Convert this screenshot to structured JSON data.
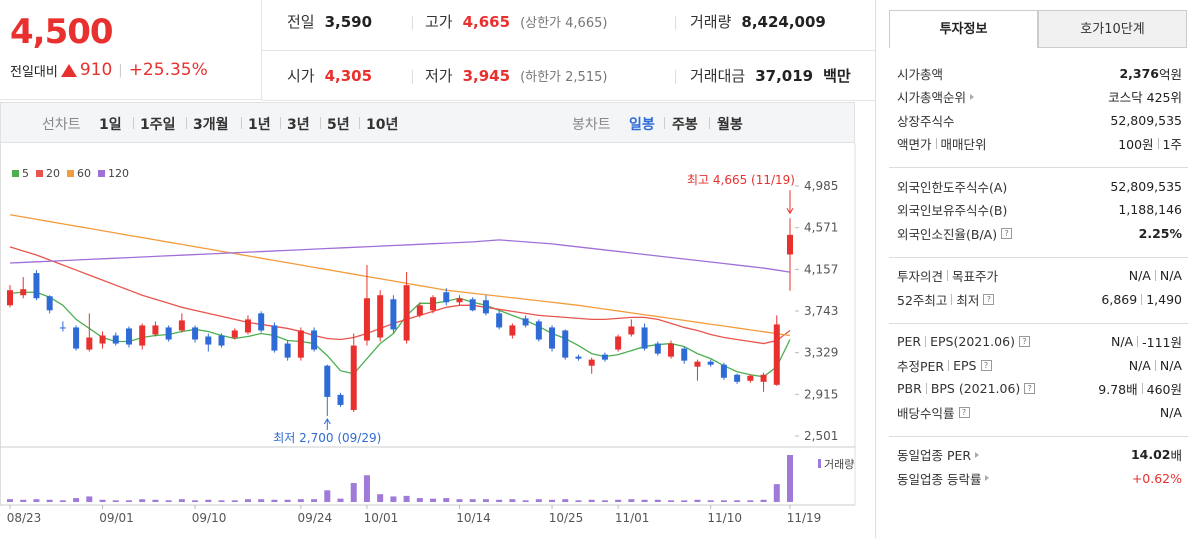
{
  "header": {
    "price": "4,500",
    "change_label": "전일대비",
    "change": "910",
    "change_pct": "+25.35%"
  },
  "stats": [
    {
      "label": "전일",
      "value": "3,590"
    },
    {
      "label": "고가",
      "value": "4,665",
      "red": true,
      "sub": "(상한가 4,665)"
    },
    {
      "label": "거래량",
      "value": "8,424,009"
    },
    {
      "label": "시가",
      "value": "4,305",
      "red": true
    },
    {
      "label": "저가",
      "value": "3,945",
      "red": true,
      "sub": "(하한가 2,515)"
    },
    {
      "label": "거래대금",
      "value": "37,019",
      "unit": "백만"
    }
  ],
  "periods": {
    "line_label": "선차트",
    "line_items": [
      "1일",
      "1주일",
      "3개월",
      "1년",
      "3년",
      "5년",
      "10년"
    ],
    "candle_label": "봉차트",
    "candle_items": [
      "일봉",
      "주봉",
      "월봉"
    ],
    "active_candle": 0
  },
  "chart_data": {
    "type": "candlestick",
    "up_color": "#e8312f",
    "down_color": "#2f6bd6",
    "categories": [
      "08/23",
      null,
      null,
      null,
      null,
      null,
      null,
      "09/01",
      null,
      null,
      null,
      null,
      null,
      null,
      "09/10",
      null,
      null,
      null,
      null,
      null,
      null,
      null,
      "09/24",
      null,
      null,
      null,
      null,
      "10/01",
      null,
      null,
      null,
      null,
      null,
      null,
      "10/14",
      null,
      null,
      null,
      null,
      null,
      null,
      "10/25",
      null,
      null,
      null,
      null,
      "11/01",
      null,
      null,
      null,
      null,
      null,
      null,
      "11/10",
      null,
      null,
      null,
      null,
      null,
      "11/19"
    ],
    "open": [
      3800,
      3900,
      4120,
      3890,
      3580,
      3580,
      3360,
      3420,
      3500,
      3570,
      3400,
      3510,
      3580,
      3550,
      3580,
      3490,
      3500,
      3480,
      3530,
      3720,
      3600,
      3420,
      3280,
      3550,
      3200,
      2910,
      2760,
      3450,
      3480,
      3860,
      3450,
      3700,
      3750,
      3930,
      3830,
      3860,
      3850,
      3720,
      3500,
      3670,
      3640,
      3580,
      3550,
      3290,
      3200,
      3310,
      3360,
      3510,
      3580,
      3420,
      3290,
      3370,
      3190,
      3240,
      3210,
      3110,
      3050,
      3040,
      3010,
      4305
    ],
    "high": [
      4000,
      4080,
      4150,
      3900,
      3640,
      3600,
      3720,
      3540,
      3530,
      3590,
      3620,
      3640,
      3600,
      3720,
      3600,
      3520,
      3520,
      3570,
      3700,
      3740,
      3630,
      3450,
      3580,
      3580,
      3210,
      2930,
      3520,
      4200,
      3950,
      3900,
      4130,
      3830,
      3900,
      3970,
      3900,
      3880,
      3900,
      3750,
      3620,
      3700,
      3660,
      3600,
      3560,
      3310,
      3280,
      3330,
      3510,
      3660,
      3620,
      3440,
      3450,
      3390,
      3260,
      3260,
      3230,
      3120,
      3110,
      3130,
      3700,
      4665
    ],
    "low": [
      3780,
      3870,
      3850,
      3720,
      3540,
      3350,
      3340,
      3370,
      3400,
      3380,
      3360,
      3490,
      3440,
      3530,
      3430,
      3340,
      3380,
      3460,
      3510,
      3530,
      3330,
      3250,
      3250,
      3340,
      2700,
      2790,
      2740,
      3400,
      3440,
      3530,
      3420,
      3680,
      3720,
      3800,
      3800,
      3740,
      3700,
      3560,
      3470,
      3580,
      3440,
      3340,
      3260,
      3250,
      3120,
      3240,
      3340,
      3490,
      3350,
      3300,
      3270,
      3220,
      3050,
      3190,
      3060,
      3020,
      3030,
      2940,
      3000,
      3945
    ],
    "close": [
      3950,
      3960,
      3870,
      3750,
      3570,
      3370,
      3480,
      3500,
      3420,
      3410,
      3600,
      3600,
      3460,
      3650,
      3460,
      3410,
      3400,
      3550,
      3660,
      3550,
      3350,
      3280,
      3550,
      3360,
      2890,
      2810,
      3400,
      3870,
      3900,
      3560,
      4000,
      3800,
      3880,
      3830,
      3870,
      3750,
      3720,
      3580,
      3600,
      3600,
      3460,
      3370,
      3280,
      3270,
      3260,
      3260,
      3490,
      3590,
      3370,
      3320,
      3420,
      3250,
      3240,
      3210,
      3080,
      3040,
      3100,
      3110,
      3610,
      4500
    ],
    "ylim": [
      2412,
      5194
    ],
    "yticks": [
      {
        "value": 4985,
        "label": "4,985"
      },
      {
        "value": 4571,
        "label": "4,571"
      },
      {
        "value": 4157,
        "label": "4,157"
      },
      {
        "value": 3743,
        "label": "3,743"
      },
      {
        "value": 3329,
        "label": "3,329"
      },
      {
        "value": 2915,
        "label": "2,915"
      },
      {
        "value": 2501,
        "label": "2,501"
      }
    ],
    "series": [
      {
        "name": "5",
        "color": "#4caf50",
        "values": [
          3920,
          3930,
          3930,
          3880,
          3800,
          3660,
          3570,
          3480,
          3440,
          3440,
          3480,
          3500,
          3510,
          3540,
          3560,
          3540,
          3500,
          3470,
          3490,
          3520,
          3500,
          3450,
          3440,
          3420,
          3300,
          3150,
          3120,
          3270,
          3420,
          3520,
          3700,
          3820,
          3820,
          3840,
          3870,
          3830,
          3800,
          3750,
          3700,
          3650,
          3590,
          3520,
          3470,
          3400,
          3320,
          3290,
          3310,
          3350,
          3390,
          3410,
          3420,
          3390,
          3320,
          3270,
          3200,
          3140,
          3110,
          3090,
          3190,
          3460
        ]
      },
      {
        "name": "20",
        "color": "#e8554e",
        "values": [
          4380,
          4340,
          4300,
          4250,
          4200,
          4150,
          4100,
          4050,
          4000,
          3950,
          3900,
          3860,
          3820,
          3780,
          3750,
          3720,
          3690,
          3660,
          3630,
          3610,
          3590,
          3570,
          3540,
          3500,
          3470,
          3460,
          3480,
          3520,
          3570,
          3620,
          3660,
          3700,
          3740,
          3780,
          3800,
          3800,
          3780,
          3760,
          3740,
          3720,
          3700,
          3690,
          3680,
          3670,
          3660,
          3660,
          3670,
          3680,
          3680,
          3660,
          3620,
          3580,
          3550,
          3510,
          3480,
          3460,
          3440,
          3420,
          3450,
          3550
        ]
      },
      {
        "name": "60",
        "color": "#f39c3c",
        "values": [
          4700,
          4677,
          4655,
          4632,
          4609,
          4586,
          4564,
          4541,
          4518,
          4495,
          4473,
          4450,
          4427,
          4405,
          4382,
          4359,
          4336,
          4314,
          4291,
          4268,
          4245,
          4223,
          4200,
          4177,
          4155,
          4132,
          4109,
          4086,
          4064,
          4041,
          4018,
          3995,
          3973,
          3950,
          3935,
          3920,
          3905,
          3890,
          3875,
          3860,
          3845,
          3830,
          3815,
          3800,
          3781,
          3762,
          3744,
          3725,
          3706,
          3688,
          3669,
          3650,
          3631,
          3612,
          3594,
          3575,
          3556,
          3538,
          3519,
          3500
        ]
      },
      {
        "name": "120",
        "color": "#a070d8",
        "values": [
          4220,
          4226,
          4232,
          4238,
          4244,
          4250,
          4256,
          4262,
          4268,
          4274,
          4280,
          4286,
          4292,
          4298,
          4304,
          4310,
          4316,
          4322,
          4328,
          4334,
          4340,
          4346,
          4352,
          4358,
          4364,
          4370,
          4376,
          4382,
          4388,
          4394,
          4400,
          4406,
          4412,
          4418,
          4424,
          4430,
          4440,
          4450,
          4440,
          4430,
          4420,
          4410,
          4395,
          4380,
          4365,
          4350,
          4335,
          4320,
          4305,
          4290,
          4275,
          4260,
          4245,
          4230,
          4215,
          4200,
          4185,
          4170,
          4150,
          4130
        ]
      }
    ],
    "volume": {
      "name": "거래량",
      "color": "#a07ad8",
      "values": [
        500000,
        400000,
        500000,
        400000,
        300000,
        700000,
        1000000,
        400000,
        300000,
        300000,
        500000,
        400000,
        300000,
        500000,
        300000,
        400000,
        300000,
        300000,
        500000,
        500000,
        400000,
        400000,
        500000,
        500000,
        2100000,
        600000,
        3400000,
        4800000,
        1400000,
        1000000,
        1100000,
        700000,
        600000,
        700000,
        500000,
        500000,
        500000,
        400000,
        500000,
        300000,
        500000,
        400000,
        500000,
        300000,
        400000,
        300000,
        400000,
        500000,
        400000,
        400000,
        300000,
        300000,
        400000,
        300000,
        300000,
        300000,
        300000,
        400000,
        3200000,
        8424009
      ]
    },
    "annotations": [
      {
        "text": "최고 4,665 (11/19)",
        "color": "#e8312f"
      },
      {
        "text": "최저 2,700 (09/29)",
        "color": "#2f6bd6"
      }
    ]
  },
  "tabs": [
    "투자정보",
    "호가10단계"
  ],
  "sections": [
    [
      {
        "label": [
          "시가총액"
        ],
        "value": [
          "2,376"
        ],
        "unit": "억원"
      },
      {
        "label": [
          "시가총액순위"
        ],
        "link": true,
        "value": [
          "코스닥 425위"
        ]
      },
      {
        "label": [
          "상장주식수"
        ],
        "value": [
          "52,809,535"
        ]
      },
      {
        "label": [
          "액면가",
          "매매단위"
        ],
        "value": [
          "100원",
          "1주"
        ]
      }
    ],
    [
      {
        "label": [
          "외국인한도주식수(A)"
        ],
        "value": [
          "52,809,535"
        ]
      },
      {
        "label": [
          "외국인보유주식수(B)"
        ],
        "value": [
          "1,188,146"
        ]
      },
      {
        "label": [
          "외국인소진율(B/A)"
        ],
        "help": true,
        "value": [
          "2.25%"
        ],
        "strong": true
      }
    ],
    [
      {
        "label": [
          "투자의견",
          "목표주가"
        ],
        "value": [
          "N/A",
          "N/A"
        ]
      },
      {
        "label": [
          "52주최고",
          "최저"
        ],
        "help": true,
        "value": [
          "6,869",
          "1,490"
        ]
      }
    ],
    [
      {
        "label": [
          "PER",
          "EPS(2021.06)"
        ],
        "help": true,
        "value": [
          "N/A",
          "-111원"
        ]
      },
      {
        "label": [
          "추정PER",
          "EPS"
        ],
        "help": true,
        "value": [
          "N/A",
          "N/A"
        ]
      },
      {
        "label": [
          "PBR",
          "BPS (2021.06)"
        ],
        "help": true,
        "value": [
          "9.78배",
          "460원"
        ]
      },
      {
        "label": [
          "배당수익률"
        ],
        "help": true,
        "value": [
          "N/A"
        ]
      }
    ],
    [
      {
        "label": [
          "동일업종 PER"
        ],
        "link": true,
        "value": [
          "14.02"
        ],
        "unit": "배"
      },
      {
        "label": [
          "동일업종 등락률"
        ],
        "link": true,
        "value": [
          "+0.62%"
        ],
        "color": "#e8312f"
      }
    ]
  ]
}
